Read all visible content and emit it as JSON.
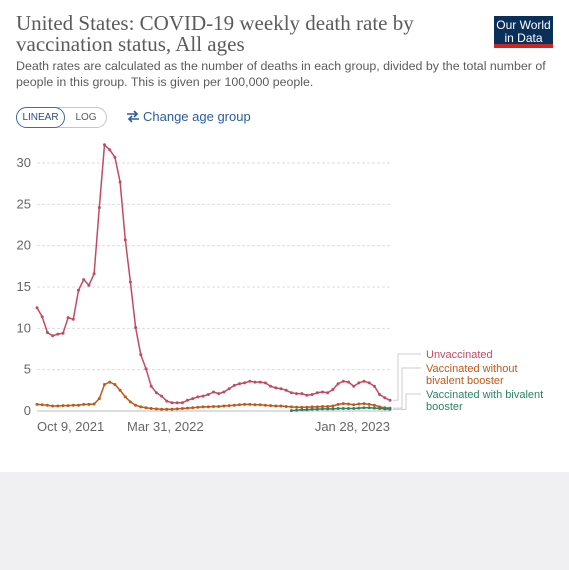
{
  "header": {
    "title": "United States: COVID-19 weekly death rate by vaccination status, All ages",
    "subtitle": "Death rates are calculated as the number of deaths in each group, divided by the total number of people in this group. This is given per 100,000 people.",
    "logo_line1": "Our World",
    "logo_line2": "in Data"
  },
  "controls": {
    "linear_label": "LINEAR",
    "log_label": "LOG",
    "change_age_label": "Change age group"
  },
  "colors": {
    "unvaccinated": "#c34a63",
    "vaccinated_without_bivalent": "#c05917",
    "vaccinated_with_bivalent": "#2b8465",
    "logo_bg": "#0b2f5b",
    "logo_accent": "#ce261e"
  },
  "chart_data": {
    "type": "line",
    "title": "United States: COVID-19 weekly death rate by vaccination status, All ages",
    "xlabel": "",
    "ylabel": "",
    "ylim": [
      0,
      32
    ],
    "yticks": [
      0,
      5,
      10,
      15,
      20,
      25,
      30
    ],
    "x_tick_labels": [
      "Oct 9, 2021",
      "Mar 31, 2022",
      "Jan 28, 2023"
    ],
    "x_start": "2021-10-09",
    "x_step_days": 7,
    "grid": true,
    "legend": "right",
    "series": [
      {
        "name": "Unvaccinated",
        "values": [
          12.5,
          11.4,
          9.5,
          9.1,
          9.3,
          9.4,
          11.3,
          11.1,
          14.6,
          15.9,
          15.2,
          16.6,
          24.6,
          32.2,
          31.6,
          30.7,
          27.7,
          20.7,
          15.6,
          10.1,
          6.8,
          5.1,
          3.0,
          2.2,
          1.8,
          1.2,
          1.0,
          1.0,
          1.0,
          1.3,
          1.5,
          1.7,
          1.8,
          2.0,
          2.3,
          2.1,
          2.3,
          2.7,
          3.1,
          3.3,
          3.4,
          3.6,
          3.5,
          3.5,
          3.4,
          3.0,
          2.8,
          2.7,
          2.5,
          2.2,
          2.1,
          2.1,
          1.9,
          2.0,
          2.2,
          2.3,
          2.2,
          2.6,
          3.3,
          3.6,
          3.5,
          3.0,
          3.4,
          3.6,
          3.4,
          3.0,
          2.0,
          1.6,
          1.3
        ]
      },
      {
        "name": "Vaccinated without bivalent booster",
        "values": [
          0.8,
          0.75,
          0.7,
          0.6,
          0.6,
          0.65,
          0.65,
          0.7,
          0.7,
          0.8,
          0.8,
          0.85,
          1.5,
          3.2,
          3.5,
          3.2,
          2.5,
          1.7,
          1.1,
          0.7,
          0.5,
          0.4,
          0.3,
          0.25,
          0.2,
          0.2,
          0.2,
          0.25,
          0.3,
          0.35,
          0.4,
          0.45,
          0.5,
          0.5,
          0.55,
          0.55,
          0.6,
          0.65,
          0.7,
          0.75,
          0.8,
          0.8,
          0.75,
          0.75,
          0.7,
          0.65,
          0.6,
          0.6,
          0.55,
          0.5,
          0.45,
          0.45,
          0.45,
          0.5,
          0.5,
          0.55,
          0.55,
          0.6,
          0.8,
          0.9,
          0.85,
          0.75,
          0.85,
          0.9,
          0.8,
          0.7,
          0.5,
          0.4,
          0.35
        ]
      },
      {
        "name": "Vaccinated with bivalent booster",
        "start_index": 49,
        "values": [
          0.05,
          0.1,
          0.15,
          0.15,
          0.2,
          0.2,
          0.25,
          0.25,
          0.25,
          0.3,
          0.3,
          0.3,
          0.3,
          0.35,
          0.4,
          0.4,
          0.35,
          0.3,
          0.25,
          0.2
        ]
      }
    ]
  }
}
